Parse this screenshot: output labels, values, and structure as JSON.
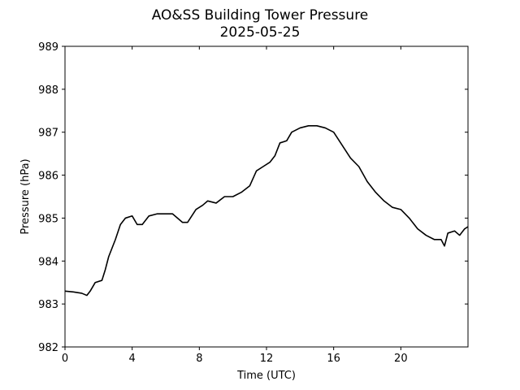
{
  "chart_data": {
    "type": "line",
    "title": "AO&SS Building Tower Pressure",
    "subtitle": "2025-05-25",
    "xlabel": "Time (UTC)",
    "ylabel": "Pressure (hPa)",
    "xlim": [
      0,
      24
    ],
    "xticks": [
      0,
      4,
      8,
      12,
      16,
      20
    ],
    "ylim": [
      982,
      989
    ],
    "yticks": [
      982,
      983,
      984,
      985,
      986,
      987,
      988,
      989
    ],
    "x": [
      0,
      0.5,
      1,
      1.3,
      1.5,
      1.8,
      2.2,
      2.4,
      2.6,
      3,
      3.3,
      3.6,
      4,
      4.3,
      4.6,
      5,
      5.5,
      6,
      6.4,
      7,
      7.3,
      7.8,
      8.2,
      8.5,
      9,
      9.5,
      10,
      10.5,
      11,
      11.4,
      11.8,
      12.2,
      12.5,
      12.8,
      13.2,
      13.5,
      14,
      14.5,
      15,
      15.5,
      16,
      16.5,
      17,
      17.5,
      18,
      18.5,
      19,
      19.5,
      20,
      20.5,
      21,
      21.5,
      22,
      22.4,
      22.6,
      22.8,
      23.2,
      23.5,
      23.8,
      24
    ],
    "series": [
      {
        "color": "#000000",
        "values": [
          983.3,
          983.28,
          983.25,
          983.2,
          983.3,
          983.5,
          983.55,
          983.8,
          984.1,
          984.5,
          984.85,
          985.0,
          985.05,
          984.85,
          984.85,
          985.05,
          985.1,
          985.1,
          985.1,
          984.9,
          984.9,
          985.2,
          985.3,
          985.4,
          985.35,
          985.5,
          985.5,
          985.6,
          985.75,
          986.1,
          986.2,
          986.3,
          986.45,
          986.75,
          986.8,
          987.0,
          987.1,
          987.15,
          987.15,
          987.1,
          987.0,
          986.7,
          986.4,
          986.2,
          985.85,
          985.6,
          985.4,
          985.25,
          985.2,
          985.0,
          984.75,
          984.6,
          984.5,
          984.5,
          984.35,
          984.65,
          984.7,
          984.6,
          984.75,
          984.8
        ]
      }
    ]
  }
}
